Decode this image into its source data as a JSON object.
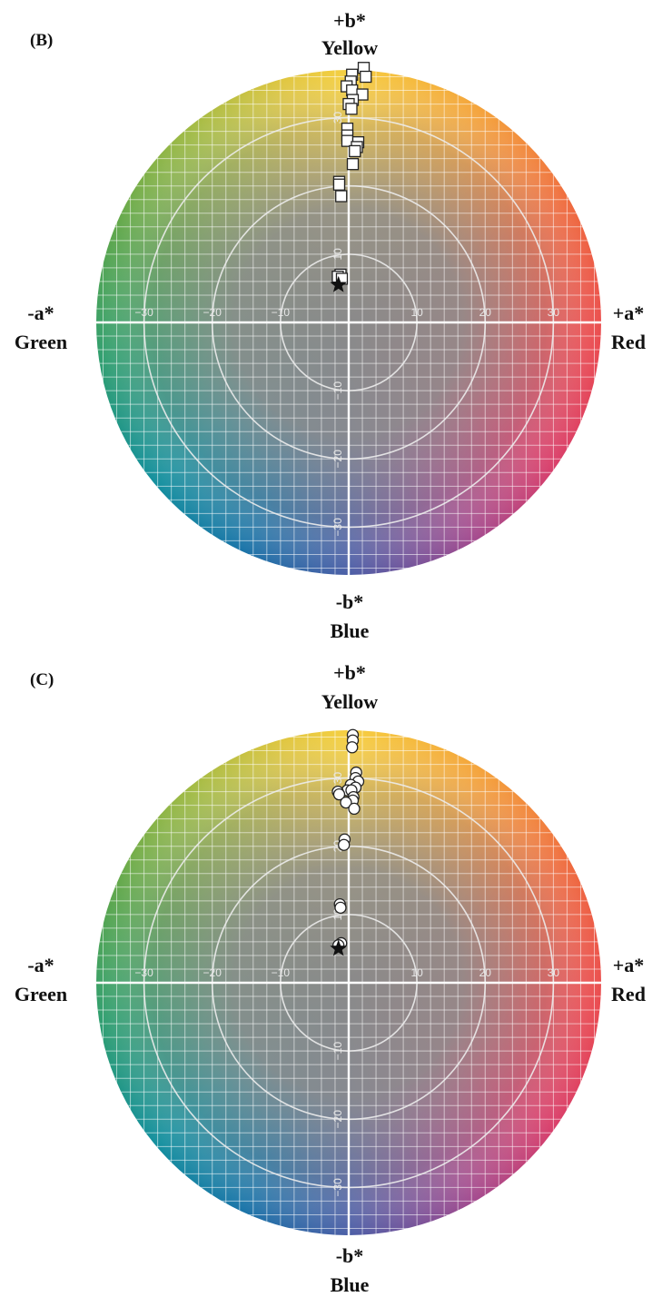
{
  "chart_data": [
    {
      "type": "scatter",
      "panel_label": "(B)",
      "axis_labels": {
        "top_sign": "+b*",
        "top_name": "Yellow",
        "bottom_sign": "-b*",
        "bottom_name": "Blue",
        "left_sign": "-a*",
        "left_name": "Green",
        "right_sign": "+a*",
        "right_name": "Red"
      },
      "x_ticks": [
        -30,
        -20,
        -10,
        10,
        20,
        30
      ],
      "y_ticks": [
        -30,
        -20,
        -10,
        10,
        20,
        30
      ],
      "xlim": [
        -37,
        37
      ],
      "ylim": [
        -37,
        37
      ],
      "ring_radii": [
        10,
        20,
        30
      ],
      "marker": "square",
      "reference_marker": "star",
      "reference_point": {
        "a": -1.5,
        "b": 5.5
      },
      "points": [
        {
          "a": 2.2,
          "b": 37.3
        },
        {
          "a": 2.5,
          "b": 36.0
        },
        {
          "a": 0.5,
          "b": 36.3
        },
        {
          "a": 0.3,
          "b": 35.3
        },
        {
          "a": -0.3,
          "b": 34.6
        },
        {
          "a": 0.5,
          "b": 34.0
        },
        {
          "a": 2.0,
          "b": 33.4
        },
        {
          "a": 0.6,
          "b": 32.6
        },
        {
          "a": 0.0,
          "b": 32.0
        },
        {
          "a": 0.4,
          "b": 31.3
        },
        {
          "a": -0.2,
          "b": 28.4
        },
        {
          "a": -0.2,
          "b": 27.4
        },
        {
          "a": -0.2,
          "b": 26.6
        },
        {
          "a": 1.4,
          "b": 26.4
        },
        {
          "a": 1.2,
          "b": 25.7
        },
        {
          "a": 0.9,
          "b": 25.1
        },
        {
          "a": 0.6,
          "b": 23.2
        },
        {
          "a": -1.4,
          "b": 20.6
        },
        {
          "a": -1.4,
          "b": 20.2
        },
        {
          "a": -1.1,
          "b": 18.5
        },
        {
          "a": -1.2,
          "b": 7.0
        },
        {
          "a": -1.6,
          "b": 6.7
        },
        {
          "a": -1.0,
          "b": 6.4
        }
      ]
    },
    {
      "type": "scatter",
      "panel_label": "(C)",
      "axis_labels": {
        "top_sign": "+b*",
        "top_name": "Yellow",
        "bottom_sign": "-b*",
        "bottom_name": "Blue",
        "left_sign": "-a*",
        "left_name": "Green",
        "right_sign": "+a*",
        "right_name": "Red"
      },
      "x_ticks": [
        -30,
        -20,
        -10,
        10,
        20,
        30
      ],
      "y_ticks": [
        -30,
        -20,
        -10,
        10,
        20,
        30
      ],
      "xlim": [
        -37,
        37
      ],
      "ylim": [
        -37,
        37
      ],
      "ring_radii": [
        10,
        20,
        30
      ],
      "marker": "circle",
      "reference_marker": "star",
      "reference_point": {
        "a": -1.5,
        "b": 5.0
      },
      "points": [
        {
          "a": 0.6,
          "b": 36.3
        },
        {
          "a": 0.6,
          "b": 35.5
        },
        {
          "a": 0.5,
          "b": 34.5
        },
        {
          "a": 1.1,
          "b": 30.8
        },
        {
          "a": 1.0,
          "b": 30.0
        },
        {
          "a": 1.4,
          "b": 29.5
        },
        {
          "a": 0.3,
          "b": 29.0
        },
        {
          "a": 1.0,
          "b": 28.6
        },
        {
          "a": -0.2,
          "b": 28.2
        },
        {
          "a": 0.4,
          "b": 28.2
        },
        {
          "a": -1.6,
          "b": 28.0
        },
        {
          "a": -1.4,
          "b": 27.6
        },
        {
          "a": 0.7,
          "b": 27.2
        },
        {
          "a": 0.6,
          "b": 26.7
        },
        {
          "a": -0.4,
          "b": 26.4
        },
        {
          "a": 0.8,
          "b": 25.5
        },
        {
          "a": -0.6,
          "b": 21.0
        },
        {
          "a": -0.7,
          "b": 20.2
        },
        {
          "a": -1.3,
          "b": 11.5
        },
        {
          "a": -1.2,
          "b": 11.0
        },
        {
          "a": -1.1,
          "b": 5.8
        },
        {
          "a": -1.5,
          "b": 5.5
        }
      ]
    }
  ]
}
